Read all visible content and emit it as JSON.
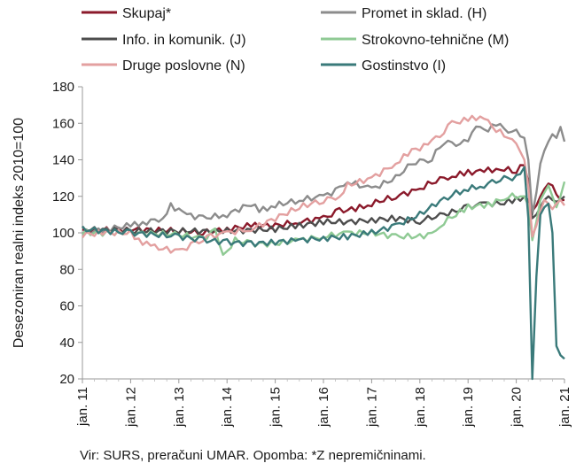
{
  "source_note": "Vir: SURS, preračuni UMAR. Opomba: *Z nepremičninami.",
  "chart_data": {
    "type": "line",
    "ylabel": "Desezoniran realni indeks 2010=100",
    "xlabel": "",
    "ylim": [
      20,
      180
    ],
    "yticks": [
      20,
      40,
      60,
      80,
      100,
      120,
      140,
      160,
      180
    ],
    "x_tick_labels": [
      "jan. 11",
      "jan. 12",
      "jan. 13",
      "jan. 14",
      "jan. 15",
      "jan. 16",
      "jan. 17",
      "jan. 18",
      "jan. 19",
      "jan. 20",
      "jan. 21"
    ],
    "x_start": "2011-01",
    "x_end": "2021-01",
    "grid": false,
    "legend_position": "top",
    "series": [
      {
        "name": "Skupaj*",
        "color": "#8b1a2b",
        "points": [
          [
            0,
            101
          ],
          [
            12,
            102
          ],
          [
            24,
            101
          ],
          [
            30,
            100
          ],
          [
            36,
            102
          ],
          [
            42,
            104
          ],
          [
            48,
            104
          ],
          [
            54,
            106
          ],
          [
            60,
            108
          ],
          [
            64,
            112
          ],
          [
            68,
            113
          ],
          [
            72,
            116
          ],
          [
            78,
            120
          ],
          [
            84,
            124
          ],
          [
            88,
            129
          ],
          [
            92,
            131
          ],
          [
            96,
            133
          ],
          [
            100,
            134
          ],
          [
            104,
            135
          ],
          [
            108,
            134
          ],
          [
            110,
            137
          ],
          [
            111,
            128
          ],
          [
            112,
            112
          ],
          [
            113,
            115
          ],
          [
            114,
            120
          ],
          [
            115,
            124
          ],
          [
            116,
            127
          ],
          [
            117,
            126
          ],
          [
            118,
            121
          ],
          [
            119,
            118
          ],
          [
            120,
            118
          ]
        ]
      },
      {
        "name": "Promet in sklad. (H)",
        "color": "#8c8c8c",
        "points": [
          [
            0,
            100
          ],
          [
            6,
            102
          ],
          [
            12,
            104
          ],
          [
            16,
            106
          ],
          [
            20,
            108
          ],
          [
            22,
            115
          ],
          [
            26,
            110
          ],
          [
            30,
            108
          ],
          [
            36,
            110
          ],
          [
            42,
            116
          ],
          [
            44,
            112
          ],
          [
            48,
            115
          ],
          [
            54,
            118
          ],
          [
            60,
            120
          ],
          [
            64,
            124
          ],
          [
            66,
            128
          ],
          [
            72,
            124
          ],
          [
            78,
            130
          ],
          [
            80,
            135
          ],
          [
            84,
            140
          ],
          [
            86,
            138
          ],
          [
            90,
            150
          ],
          [
            92,
            148
          ],
          [
            96,
            150
          ],
          [
            98,
            158
          ],
          [
            100,
            156
          ],
          [
            104,
            160
          ],
          [
            106,
            156
          ],
          [
            108,
            155
          ],
          [
            110,
            152
          ],
          [
            111,
            140
          ],
          [
            112,
            110
          ],
          [
            113,
            122
          ],
          [
            114,
            138
          ],
          [
            115,
            145
          ],
          [
            116,
            150
          ],
          [
            117,
            154
          ],
          [
            118,
            152
          ],
          [
            119,
            158
          ],
          [
            120,
            150
          ]
        ]
      },
      {
        "name": "Info. in komunik. (J)",
        "color": "#4d4d4d",
        "points": [
          [
            0,
            102
          ],
          [
            12,
            101
          ],
          [
            24,
            101
          ],
          [
            36,
            101
          ],
          [
            48,
            102
          ],
          [
            54,
            104
          ],
          [
            60,
            106
          ],
          [
            66,
            106
          ],
          [
            72,
            107
          ],
          [
            78,
            108
          ],
          [
            84,
            106
          ],
          [
            88,
            110
          ],
          [
            90,
            110
          ],
          [
            96,
            114
          ],
          [
            100,
            116
          ],
          [
            104,
            116
          ],
          [
            108,
            118
          ],
          [
            110,
            120
          ],
          [
            111,
            118
          ],
          [
            112,
            108
          ],
          [
            113,
            110
          ],
          [
            114,
            114
          ],
          [
            115,
            118
          ],
          [
            116,
            120
          ],
          [
            117,
            118
          ],
          [
            118,
            117
          ],
          [
            119,
            118
          ],
          [
            120,
            120
          ]
        ]
      },
      {
        "name": "Strokovno-tehnične (M)",
        "color": "#8fca94",
        "points": [
          [
            0,
            100
          ],
          [
            12,
            100
          ],
          [
            24,
            99
          ],
          [
            30,
            97
          ],
          [
            33,
            101
          ],
          [
            35,
            88
          ],
          [
            36,
            90
          ],
          [
            38,
            96
          ],
          [
            42,
            94
          ],
          [
            48,
            94
          ],
          [
            54,
            96
          ],
          [
            60,
            98
          ],
          [
            66,
            100
          ],
          [
            72,
            100
          ],
          [
            78,
            98
          ],
          [
            84,
            98
          ],
          [
            88,
            100
          ],
          [
            90,
            106
          ],
          [
            96,
            114
          ],
          [
            102,
            116
          ],
          [
            106,
            120
          ],
          [
            110,
            120
          ],
          [
            111,
            115
          ],
          [
            112,
            96
          ],
          [
            113,
            106
          ],
          [
            114,
            118
          ],
          [
            115,
            122
          ],
          [
            116,
            126
          ],
          [
            117,
            120
          ],
          [
            118,
            114
          ],
          [
            119,
            120
          ],
          [
            120,
            128
          ]
        ]
      },
      {
        "name": "Druge poslovne (N)",
        "color": "#e3a0a0",
        "points": [
          [
            0,
            99
          ],
          [
            6,
            100
          ],
          [
            12,
            100
          ],
          [
            14,
            96
          ],
          [
            18,
            92
          ],
          [
            24,
            90
          ],
          [
            28,
            94
          ],
          [
            32,
            98
          ],
          [
            36,
            100
          ],
          [
            42,
            102
          ],
          [
            48,
            108
          ],
          [
            54,
            114
          ],
          [
            60,
            118
          ],
          [
            64,
            120
          ],
          [
            66,
            126
          ],
          [
            72,
            130
          ],
          [
            78,
            138
          ],
          [
            82,
            145
          ],
          [
            86,
            148
          ],
          [
            88,
            152
          ],
          [
            90,
            156
          ],
          [
            92,
            160
          ],
          [
            96,
            162
          ],
          [
            100,
            164
          ],
          [
            102,
            158
          ],
          [
            106,
            152
          ],
          [
            108,
            148
          ],
          [
            110,
            140
          ],
          [
            111,
            125
          ],
          [
            112,
            98
          ],
          [
            113,
            104
          ],
          [
            114,
            112
          ],
          [
            115,
            118
          ],
          [
            116,
            116
          ],
          [
            117,
            113
          ],
          [
            118,
            116
          ],
          [
            119,
            118
          ],
          [
            120,
            115
          ]
        ]
      },
      {
        "name": "Gostinstvo (I)",
        "color": "#3a7a7a",
        "points": [
          [
            0,
            102
          ],
          [
            12,
            100
          ],
          [
            24,
            98
          ],
          [
            30,
            96
          ],
          [
            36,
            95
          ],
          [
            42,
            94
          ],
          [
            48,
            95
          ],
          [
            54,
            96
          ],
          [
            60,
            97
          ],
          [
            66,
            98
          ],
          [
            72,
            100
          ],
          [
            78,
            104
          ],
          [
            84,
            110
          ],
          [
            88,
            116
          ],
          [
            92,
            121
          ],
          [
            96,
            124
          ],
          [
            100,
            126
          ],
          [
            104,
            130
          ],
          [
            108,
            130
          ],
          [
            110,
            136
          ],
          [
            111,
            108
          ],
          [
            112,
            20
          ],
          [
            113,
            76
          ],
          [
            114,
            110
          ],
          [
            115,
            114
          ],
          [
            116,
            116
          ],
          [
            117,
            100
          ],
          [
            118,
            38
          ],
          [
            119,
            33
          ],
          [
            120,
            31
          ]
        ]
      }
    ]
  }
}
